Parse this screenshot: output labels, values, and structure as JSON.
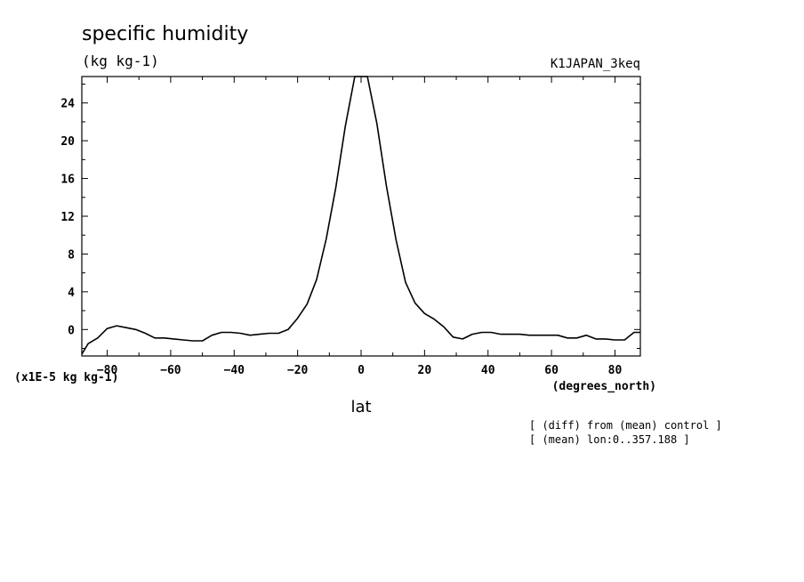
{
  "chart_data": {
    "type": "line",
    "title": "specific humidity",
    "units": "(kg kg-1)",
    "experiment": "K1JAPAN_3keq",
    "xlabel": "lat",
    "xunits": "(degrees_north)",
    "yscale_label": "(x1E-5 kg kg-1)",
    "notes": [
      "[ (diff) from (mean) control ]",
      "[ (mean) lon:0..357.188 ]"
    ],
    "xlim": [
      -88,
      88
    ],
    "ylim": [
      -2.8,
      26.8
    ],
    "xticks": [
      -80,
      -60,
      -40,
      -20,
      0,
      20,
      40,
      60,
      80
    ],
    "yticks": [
      0,
      4,
      8,
      12,
      16,
      20,
      24
    ],
    "grid": false,
    "series": [
      {
        "x": [
          -88,
          -86,
          -83,
          -80,
          -77,
          -74,
          -71,
          -68,
          -65,
          -62,
          -59,
          -56,
          -53,
          -50,
          -47,
          -44,
          -41,
          -38,
          -35,
          -32,
          -29,
          -26,
          -23,
          -20,
          -17,
          -14,
          -11,
          -8,
          -5,
          -2,
          0,
          2,
          5,
          8,
          11,
          14,
          17,
          20,
          23,
          26,
          29,
          32,
          35,
          38,
          41,
          44,
          47,
          50,
          53,
          56,
          59,
          62,
          65,
          68,
          71,
          74,
          77,
          80,
          83,
          86,
          88
        ],
        "y": [
          -2.6,
          -1.5,
          -0.9,
          0.1,
          0.4,
          0.2,
          0.0,
          -0.4,
          -0.9,
          -0.9,
          -1.0,
          -1.1,
          -1.2,
          -1.2,
          -0.6,
          -0.3,
          -0.3,
          -0.4,
          -0.6,
          -0.5,
          -0.4,
          -0.4,
          0.0,
          1.2,
          2.7,
          5.3,
          9.6,
          15.0,
          21.5,
          26.8,
          26.8,
          26.8,
          21.8,
          15.2,
          9.5,
          5.0,
          2.8,
          1.7,
          1.1,
          0.3,
          -0.8,
          -1.0,
          -0.5,
          -0.3,
          -0.3,
          -0.5,
          -0.5,
          -0.5,
          -0.6,
          -0.6,
          -0.6,
          -0.6,
          -0.9,
          -0.9,
          -0.6,
          -1.0,
          -1.0,
          -1.1,
          -1.1,
          -0.3,
          -0.3
        ]
      }
    ]
  }
}
